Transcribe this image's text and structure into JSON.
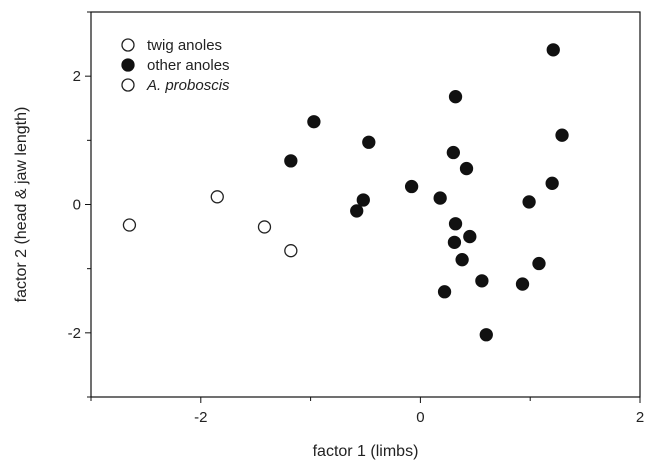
{
  "chart_data": {
    "type": "scatter",
    "title": "",
    "xlabel": "factor 1 (limbs)",
    "ylabel": "factor 2 (head & jaw length)",
    "xlim": [
      -3,
      2
    ],
    "ylim": [
      -3,
      3
    ],
    "xticks": [
      -2,
      0,
      2
    ],
    "yticks": [
      -2,
      0,
      2
    ],
    "grid": false,
    "legend_position": "top-left",
    "series": [
      {
        "name": "twig anoles",
        "marker": "open-circle",
        "color": "#ffffff",
        "edge_color": "#222222",
        "points": [
          {
            "x": -2.65,
            "y": -0.32
          },
          {
            "x": -1.85,
            "y": 0.12
          },
          {
            "x": -1.42,
            "y": -0.35
          },
          {
            "x": -1.18,
            "y": -0.72
          }
        ]
      },
      {
        "name": "other anoles",
        "marker": "filled-circle",
        "color": "#111111",
        "edge_color": "#111111",
        "points": [
          {
            "x": -1.18,
            "y": 0.68
          },
          {
            "x": -0.97,
            "y": 1.29
          },
          {
            "x": -0.47,
            "y": 0.97
          },
          {
            "x": -0.58,
            "y": -0.1
          },
          {
            "x": -0.52,
            "y": 0.07
          },
          {
            "x": -0.08,
            "y": 0.28
          },
          {
            "x": 0.18,
            "y": 0.1
          },
          {
            "x": 0.3,
            "y": 0.81
          },
          {
            "x": 0.32,
            "y": 1.68
          },
          {
            "x": 0.42,
            "y": 0.56
          },
          {
            "x": 0.32,
            "y": -0.3
          },
          {
            "x": 0.31,
            "y": -0.59
          },
          {
            "x": 0.45,
            "y": -0.5
          },
          {
            "x": 0.38,
            "y": -0.86
          },
          {
            "x": 0.22,
            "y": -1.36
          },
          {
            "x": 0.56,
            "y": -1.19
          },
          {
            "x": 0.6,
            "y": -2.03
          },
          {
            "x": 0.93,
            "y": -1.24
          },
          {
            "x": 0.99,
            "y": 0.04
          },
          {
            "x": 1.08,
            "y": -0.92
          },
          {
            "x": 1.2,
            "y": 0.33
          },
          {
            "x": 1.21,
            "y": 2.41
          },
          {
            "x": 1.29,
            "y": 1.08
          }
        ]
      },
      {
        "name": "A. proboscis",
        "marker": "open-circle",
        "color": "#ffffff",
        "edge_color": "#222222",
        "points": []
      }
    ]
  }
}
